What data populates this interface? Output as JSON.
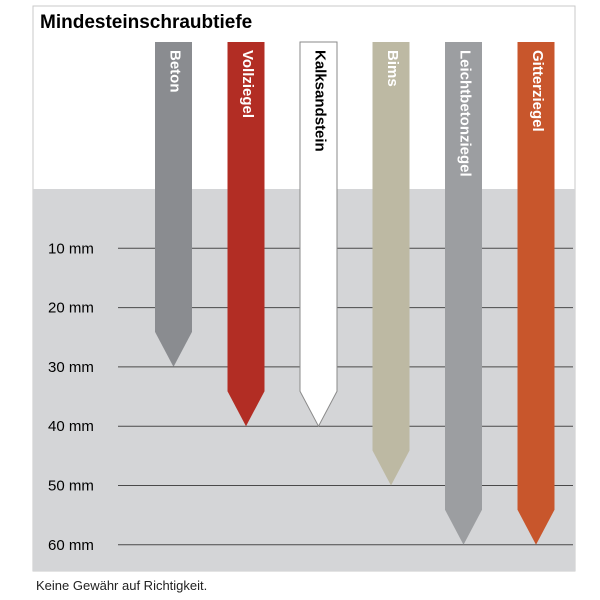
{
  "chart_data": {
    "type": "bar",
    "title": "Mindesteinschraubtiefe",
    "unit": "mm",
    "tick_labels": [
      "10 mm",
      "20 mm",
      "30 mm",
      "40 mm",
      "50 mm",
      "60 mm"
    ],
    "ticks": [
      10,
      20,
      30,
      40,
      50,
      60
    ],
    "ylim": [
      0,
      60
    ],
    "categories": [
      "Beton",
      "Vollziegel",
      "Kalksandstein",
      "Bims",
      "Leichtbetonziegel",
      "Gitterziegel"
    ],
    "values": [
      30,
      40,
      40,
      50,
      60,
      60
    ],
    "colors": [
      "#8a8c90",
      "#b22d24",
      "#ffffff",
      "#bdb9a3",
      "#9c9ea1",
      "#c8562c"
    ],
    "label_colors": [
      "#ffffff",
      "#ffffff",
      "#000000",
      "#ffffff",
      "#ffffff",
      "#ffffff"
    ],
    "background_color": "#d4d5d7"
  },
  "footer": "Keine Gewähr auf Richtigkeit."
}
